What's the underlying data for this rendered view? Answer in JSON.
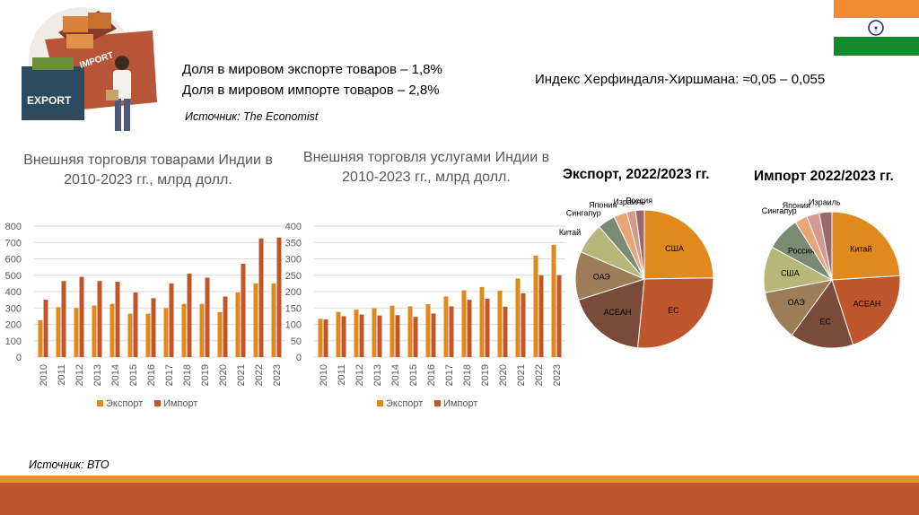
{
  "header": {
    "export_share": "Доля в мировом экспорте товаров – 1,8%",
    "import_share": "Доля в мировом импорте товаров – 2,8%",
    "source_economist": "Источник: The Economist",
    "hhi": "Индекс Херфиндаля-Хиршмана: ≈0,05 – 0,055",
    "illustration_export_label": "EXPORT",
    "illustration_import_label": "IMPORT"
  },
  "footer": {
    "source": "Источник: ВТО"
  },
  "colors": {
    "export": "#E08A1E",
    "import": "#C0562B",
    "footer_top": "#E8902A",
    "footer_bottom": "#C0562B",
    "flag_saffron": "#F08C32",
    "flag_green": "#148A2C",
    "flag_chakra": "#1A2A80"
  },
  "chart_data": [
    {
      "type": "bar",
      "title": "Внешняя торговля товарами Индии в 2010-2023 гг., млрд долл.",
      "categories": [
        "2010",
        "2011",
        "2012",
        "2013",
        "2014",
        "2015",
        "2016",
        "2017",
        "2018",
        "2019",
        "2020",
        "2021",
        "2022",
        "2023"
      ],
      "series": [
        {
          "name": "Экспорт",
          "values": [
            225,
            305,
            300,
            315,
            325,
            265,
            265,
            300,
            325,
            325,
            275,
            395,
            450,
            450
          ]
        },
        {
          "name": "Импорт",
          "values": [
            350,
            465,
            490,
            465,
            460,
            395,
            360,
            450,
            510,
            485,
            370,
            570,
            725,
            730
          ]
        }
      ],
      "ylim": [
        0,
        800
      ],
      "yticks": [
        "0",
        "100",
        "200",
        "300",
        "400",
        "500",
        "600",
        "700",
        "800"
      ],
      "grid": true,
      "legend": "bottom"
    },
    {
      "type": "bar",
      "title": "Внешняя торговля услугами Индии в 2010-2023 гг., млрд долл.",
      "categories": [
        "2010",
        "2011",
        "2012",
        "2013",
        "2014",
        "2015",
        "2016",
        "2017",
        "2018",
        "2019",
        "2020",
        "2021",
        "2022",
        "2023"
      ],
      "series": [
        {
          "name": "Экспорт",
          "values": [
            117,
            138,
            145,
            149,
            157,
            155,
            162,
            185,
            204,
            214,
            203,
            240,
            310,
            343
          ]
        },
        {
          "name": "Импорт",
          "values": [
            115,
            125,
            130,
            127,
            128,
            123,
            133,
            155,
            175,
            178,
            154,
            195,
            250,
            250
          ]
        }
      ],
      "ylim": [
        0,
        400
      ],
      "yticks": [
        "0",
        "50",
        "100",
        "150",
        "200",
        "250",
        "300",
        "350",
        "400"
      ],
      "grid": true,
      "legend": "bottom"
    },
    {
      "type": "pie",
      "title": "Экспорт, 2022/2023 гг.",
      "labels": [
        "США",
        "ЕС",
        "АСЕАН",
        "ОАЭ",
        "Китай",
        "Сингапур",
        "Япония",
        "Израиль",
        "Россия"
      ],
      "values": [
        24,
        26,
        18,
        11,
        7,
        4,
        3,
        2,
        2
      ],
      "colors": [
        "#E08A1E",
        "#C0562B",
        "#7A4A3A",
        "#9C7D58",
        "#B7B77A",
        "#7B8A73",
        "#E8A678",
        "#D49A90",
        "#9A6A6A"
      ]
    },
    {
      "type": "pie",
      "title": "Импорт 2022/2023 гг.",
      "labels": [
        "Китай",
        "АСЕАН",
        "ЕС",
        "ОАЭ",
        "США",
        "Россия",
        "Сингапур",
        "Япония",
        "Израиль"
      ],
      "values": [
        24,
        21,
        15,
        12,
        11,
        8,
        3,
        3,
        3
      ],
      "colors": [
        "#E08A1E",
        "#C0562B",
        "#7A4A3A",
        "#9C7D58",
        "#B7B77A",
        "#7B8A73",
        "#E8A678",
        "#D49A90",
        "#9A6A6A"
      ]
    }
  ]
}
